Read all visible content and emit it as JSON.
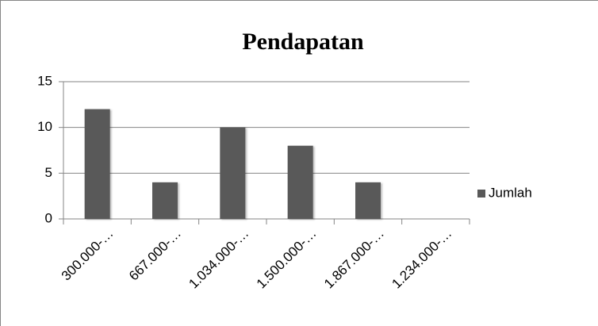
{
  "chart_data": {
    "type": "bar",
    "title": "Pendapatan",
    "categories": [
      "300.000-…",
      "667.000-…",
      "1.034.000-…",
      "1.500.000-…",
      "1.867.000-…",
      "1.234.000-…"
    ],
    "series": [
      {
        "name": "Jumlah",
        "color": "#595959",
        "values": [
          12,
          4,
          10,
          8,
          4,
          0
        ]
      }
    ],
    "ylim": [
      0,
      15
    ],
    "yticks": [
      0,
      5,
      10,
      15
    ],
    "grid": true,
    "legend": "right"
  }
}
